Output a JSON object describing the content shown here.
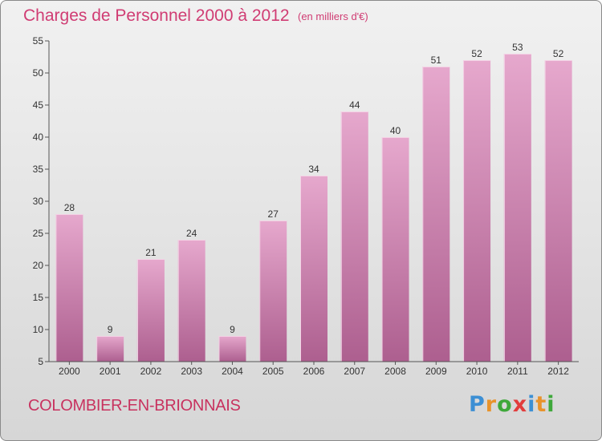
{
  "header": {
    "title": "Charges de Personnel 2000 à 2012",
    "subtitle": "(en milliers d'€)"
  },
  "footer": {
    "commune": "COLOMBIER-EN-BRIONNAIS",
    "logo_letters": [
      "P",
      "r",
      "o",
      "x",
      "i",
      "t",
      "i"
    ],
    "logo_colors": [
      "#3c8fd4",
      "#e8932b",
      "#3ea83a",
      "#e23c3c",
      "#3c8fd4",
      "#e8932b",
      "#3ea83a"
    ]
  },
  "colors": {
    "bar_top": "#e6a8cd",
    "bar_bottom": "#ad5f8f",
    "bar_edge": "#f4d3e6",
    "text": "#333333",
    "accent": "#d03c73"
  },
  "chart_data": {
    "type": "bar",
    "title": "Charges de Personnel 2000 à 2012",
    "subtitle": "(en milliers d'€)",
    "categories": [
      "2000",
      "2001",
      "2002",
      "2003",
      "2004",
      "2005",
      "2006",
      "2007",
      "2008",
      "2009",
      "2010",
      "2011",
      "2012"
    ],
    "values": [
      28,
      9,
      21,
      24,
      9,
      27,
      34,
      44,
      40,
      51,
      52,
      53,
      52
    ],
    "ylim": [
      5,
      55
    ],
    "yticks": [
      5,
      10,
      15,
      20,
      25,
      30,
      35,
      40,
      45,
      50,
      55
    ],
    "grid": false,
    "data_labels": true
  }
}
